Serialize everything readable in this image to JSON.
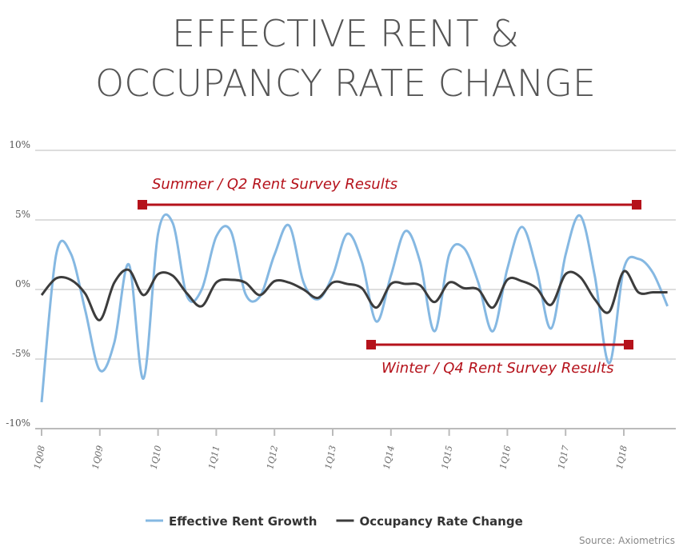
{
  "chart_data": {
    "type": "line",
    "title_lines": [
      "EFFECTIVE RENT &",
      "OCCUPANCY RATE CHANGE"
    ],
    "categories": [
      "1Q08",
      null,
      null,
      null,
      "1Q09",
      null,
      null,
      null,
      "1Q10",
      null,
      null,
      null,
      "1Q11",
      null,
      null,
      null,
      "1Q12",
      null,
      null,
      null,
      "1Q13",
      null,
      null,
      null,
      "1Q14",
      null,
      null,
      null,
      "1Q15",
      null,
      null,
      null,
      "1Q16",
      null,
      null,
      null,
      "1Q17",
      null,
      null,
      null,
      "1Q18",
      null,
      null,
      null
    ],
    "series": [
      {
        "name": "Effective Rent Growth",
        "color": "#85b8e2",
        "values": [
          -8.1,
          2.5,
          2.6,
          -1.5,
          -5.8,
          -3.8,
          1.8,
          -6.4,
          4.0,
          4.8,
          -0.5,
          0.0,
          3.8,
          4.2,
          -0.3,
          -0.5,
          2.5,
          4.6,
          0.5,
          -0.7,
          1.0,
          4.0,
          2.0,
          -2.3,
          1.0,
          4.2,
          2.0,
          -3.0,
          2.5,
          3.0,
          0.5,
          -3.0,
          1.5,
          4.5,
          1.5,
          -2.8,
          2.5,
          5.3,
          1.0,
          -5.3,
          1.5,
          2.2,
          1.2,
          -1.2
        ]
      },
      {
        "name": "Occupancy Rate Change",
        "color": "#3c3c3c",
        "values": [
          -0.4,
          0.8,
          0.7,
          -0.3,
          -2.2,
          0.5,
          1.4,
          -0.4,
          1.1,
          1.0,
          -0.3,
          -1.2,
          0.5,
          0.7,
          0.5,
          -0.4,
          0.6,
          0.5,
          0.0,
          -0.6,
          0.5,
          0.4,
          0.1,
          -1.3,
          0.4,
          0.4,
          0.3,
          -0.9,
          0.5,
          0.1,
          0.0,
          -1.3,
          0.7,
          0.6,
          0.1,
          -1.1,
          1.1,
          0.9,
          -0.7,
          -1.6,
          1.3,
          -0.2,
          -0.2,
          -0.2
        ]
      }
    ],
    "ylim": [
      -10,
      10
    ],
    "yticks": [
      {
        "value": 10,
        "label": "10%"
      },
      {
        "value": 5,
        "label": "5%"
      },
      {
        "value": 0,
        "label": "0%"
      },
      {
        "value": -5,
        "label": "-5%"
      },
      {
        "value": -10,
        "label": "-10%"
      }
    ],
    "grid": true,
    "annotations": [
      "Summer / Q2 Rent Survey Results",
      "Winter / Q4 Rent Survey Results"
    ],
    "source": "Source: Axiometrics"
  }
}
